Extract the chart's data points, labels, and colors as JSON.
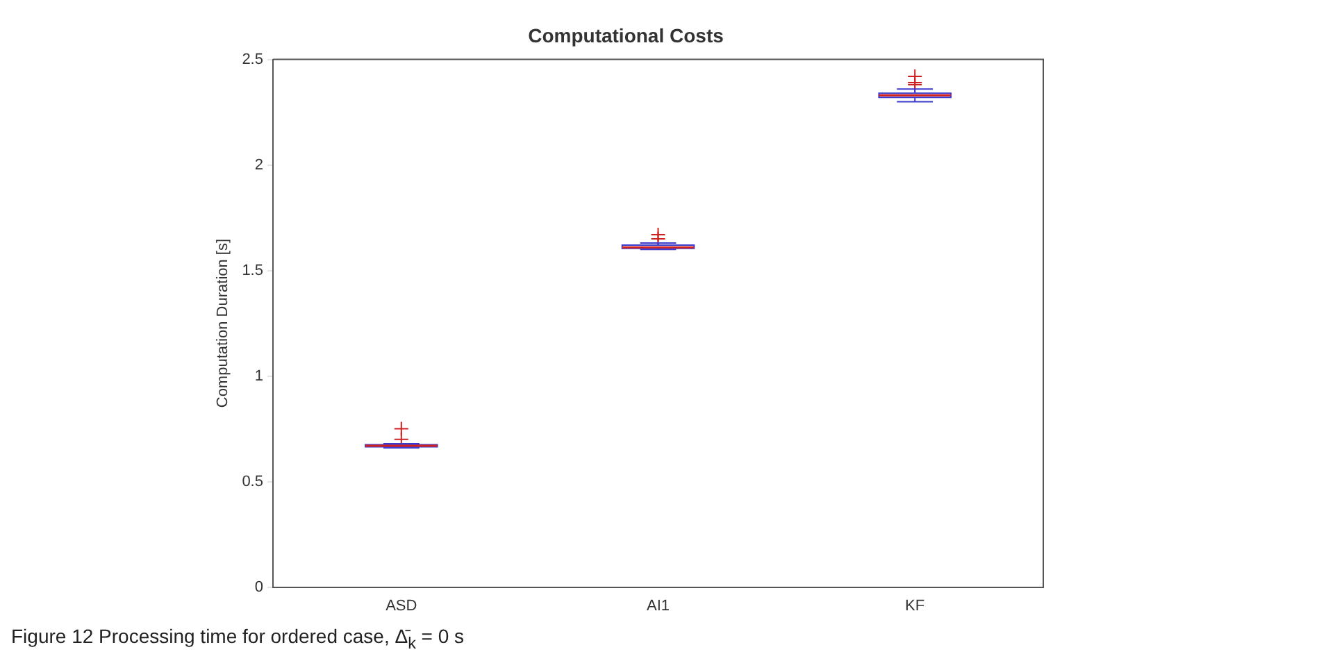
{
  "chart_data": {
    "type": "box",
    "title": "Computational Costs",
    "ylabel": "Computation Duration [s]",
    "categories": [
      "ASD",
      "AI1",
      "KF"
    ],
    "boxes": [
      {
        "low": 0.66,
        "q1": 0.665,
        "median": 0.67,
        "q3": 0.675,
        "high": 0.68,
        "outliers": [
          0.7,
          0.75
        ]
      },
      {
        "low": 1.6,
        "q1": 1.605,
        "median": 1.61,
        "q3": 1.62,
        "high": 1.63,
        "outliers": [
          1.65,
          1.67
        ]
      },
      {
        "low": 2.3,
        "q1": 2.32,
        "median": 2.33,
        "q3": 2.34,
        "high": 2.36,
        "outliers": [
          2.38,
          2.39,
          2.42
        ]
      }
    ],
    "color": "#3a3acc",
    "ylim": [
      0,
      2.5
    ],
    "yticks": [
      0,
      0.5,
      1,
      1.5,
      2,
      2.5
    ],
    "grid": false,
    "legend": false,
    "annotations": [
      "Figure 12 Processing time for ordered case, Δ̄$_{k}$ = 0 s"
    ]
  }
}
